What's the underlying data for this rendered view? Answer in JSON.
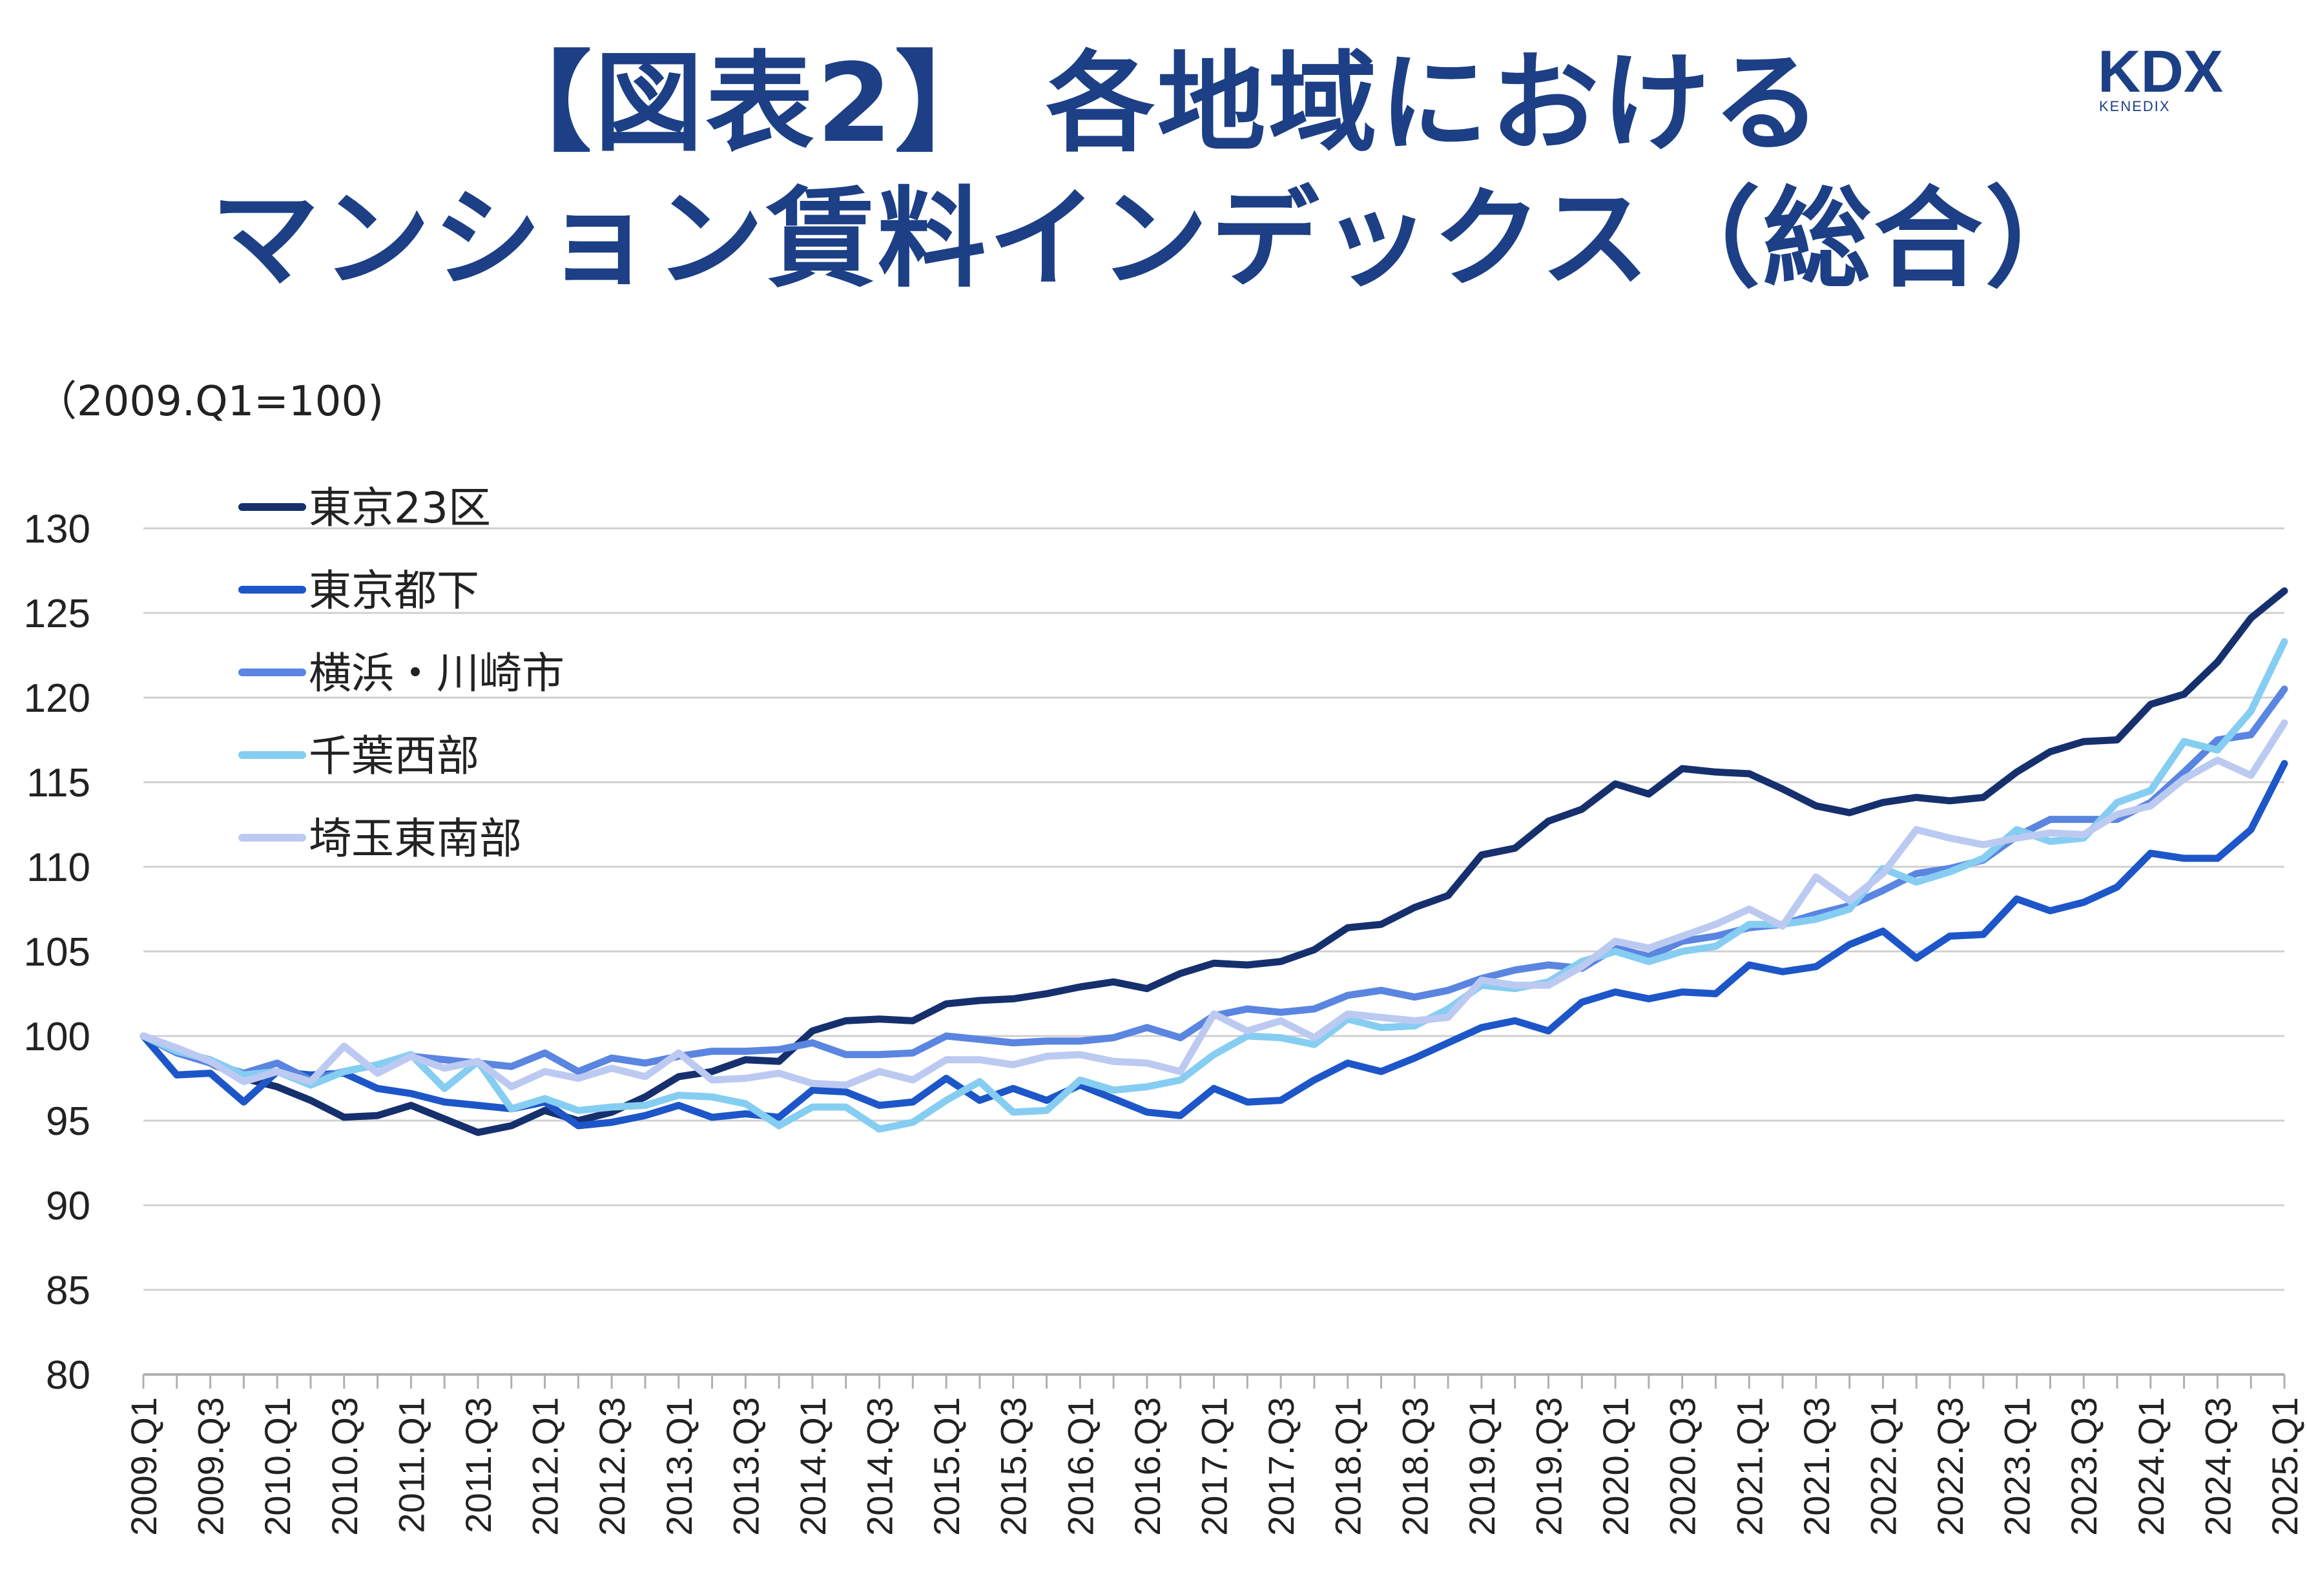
{
  "title_line1": "【図表2】 各地域における",
  "title_line2": "マンション賃料インデックス（総合）",
  "logo": {
    "text": "KDX",
    "sub": "KENEDIX"
  },
  "unit_note": "（2009.Q1=100)",
  "colors": {
    "title": "#1c3f86",
    "grid": "#d0d0d0",
    "axis": "#b0b0b0",
    "text": "#222222"
  },
  "chart_data": {
    "type": "line",
    "ylim": [
      80,
      130
    ],
    "yticks": [
      80,
      85,
      90,
      95,
      100,
      105,
      110,
      115,
      120,
      125,
      130
    ],
    "grid": true,
    "legend_position": "top-left",
    "xtick_labels": [
      "2009.Q1",
      "2009.Q3",
      "2010.Q1",
      "2010.Q3",
      "2011.Q1",
      "2011.Q3",
      "2012.Q1",
      "2012.Q3",
      "2013.Q1",
      "2013.Q3",
      "2014.Q1",
      "2014.Q3",
      "2015.Q1",
      "2015.Q3",
      "2016.Q1",
      "2016.Q3",
      "2017.Q1",
      "2017.Q3",
      "2018.Q1",
      "2018.Q3",
      "2019.Q1",
      "2019.Q3",
      "2020.Q1",
      "2020.Q3",
      "2021.Q1",
      "2021.Q3",
      "2022.Q1",
      "2022.Q3",
      "2023.Q1",
      "2023.Q3",
      "2024.Q1",
      "2024.Q3",
      "2025.Q1"
    ],
    "x": [
      "2009.Q1",
      "2009.Q2",
      "2009.Q3",
      "2009.Q4",
      "2010.Q1",
      "2010.Q2",
      "2010.Q3",
      "2010.Q4",
      "2011.Q1",
      "2011.Q2",
      "2011.Q3",
      "2011.Q4",
      "2012.Q1",
      "2012.Q2",
      "2012.Q3",
      "2012.Q4",
      "2013.Q1",
      "2013.Q2",
      "2013.Q3",
      "2013.Q4",
      "2014.Q1",
      "2014.Q2",
      "2014.Q3",
      "2014.Q4",
      "2015.Q1",
      "2015.Q2",
      "2015.Q3",
      "2015.Q4",
      "2016.Q1",
      "2016.Q2",
      "2016.Q3",
      "2016.Q4",
      "2017.Q1",
      "2017.Q2",
      "2017.Q3",
      "2017.Q4",
      "2018.Q1",
      "2018.Q2",
      "2018.Q3",
      "2018.Q4",
      "2019.Q1",
      "2019.Q2",
      "2019.Q3",
      "2019.Q4",
      "2020.Q1",
      "2020.Q2",
      "2020.Q3",
      "2020.Q4",
      "2021.Q1",
      "2021.Q2",
      "2021.Q3",
      "2021.Q4",
      "2022.Q1",
      "2022.Q2",
      "2022.Q3",
      "2022.Q4",
      "2023.Q1",
      "2023.Q2",
      "2023.Q3",
      "2023.Q4",
      "2024.Q1",
      "2024.Q2",
      "2024.Q3",
      "2024.Q4",
      "2025.Q1"
    ],
    "series": [
      {
        "name": "東京23区",
        "color": "#16306e",
        "values": [
          100,
          99.2,
          98.4,
          97.5,
          97.0,
          96.2,
          95.2,
          95.3,
          95.9,
          95.1,
          94.3,
          94.7,
          95.6,
          95.0,
          95.5,
          96.4,
          97.6,
          97.9,
          98.6,
          98.5,
          100.3,
          100.9,
          101.0,
          100.9,
          101.9,
          102.1,
          102.2,
          102.5,
          102.9,
          103.2,
          102.8,
          103.7,
          104.3,
          104.2,
          104.4,
          105.1,
          106.4,
          106.6,
          107.6,
          108.3,
          110.7,
          111.1,
          112.7,
          113.4,
          114.9,
          114.3,
          115.8,
          115.6,
          115.5,
          114.6,
          113.6,
          113.2,
          113.8,
          114.1,
          113.9,
          114.1,
          115.6,
          116.8,
          117.4,
          117.5,
          119.6,
          120.2,
          122.1,
          124.7,
          126.3
        ]
      },
      {
        "name": "東京都下",
        "color": "#1d56c8",
        "values": [
          100,
          97.7,
          97.8,
          96.1,
          97.9,
          97.7,
          97.8,
          96.9,
          96.6,
          96.1,
          95.9,
          95.7,
          96.1,
          94.7,
          94.9,
          95.3,
          95.9,
          95.2,
          95.4,
          95.2,
          96.8,
          96.7,
          95.9,
          96.1,
          97.5,
          96.2,
          96.9,
          96.2,
          97.1,
          96.3,
          95.5,
          95.3,
          96.9,
          96.1,
          96.2,
          97.4,
          98.4,
          97.9,
          98.7,
          99.6,
          100.5,
          100.9,
          100.3,
          102.0,
          102.6,
          102.2,
          102.6,
          102.5,
          104.2,
          103.8,
          104.1,
          105.4,
          106.2,
          104.6,
          105.9,
          106.0,
          108.1,
          107.4,
          107.9,
          108.8,
          110.8,
          110.5,
          110.5,
          112.2,
          116.1
        ]
      },
      {
        "name": "横浜・川崎市",
        "color": "#5a85e0",
        "values": [
          100,
          99.0,
          98.4,
          97.8,
          98.4,
          97.4,
          97.9,
          98.3,
          98.8,
          98.6,
          98.4,
          98.2,
          99.0,
          97.9,
          98.7,
          98.4,
          98.8,
          99.1,
          99.1,
          99.2,
          99.6,
          98.9,
          98.9,
          99.0,
          100.0,
          99.8,
          99.6,
          99.7,
          99.7,
          99.9,
          100.5,
          99.9,
          101.2,
          101.6,
          101.4,
          101.6,
          102.4,
          102.7,
          102.3,
          102.7,
          103.4,
          103.9,
          104.2,
          104.0,
          105.2,
          104.7,
          105.6,
          105.9,
          106.4,
          106.6,
          107.2,
          107.7,
          108.6,
          109.6,
          109.9,
          110.4,
          111.8,
          112.8,
          112.8,
          112.8,
          113.8,
          115.6,
          117.5,
          117.8,
          120.5
        ]
      },
      {
        "name": "千葉西部",
        "color": "#86cdf2",
        "values": [
          100,
          99.1,
          98.6,
          97.7,
          97.9,
          97.1,
          97.9,
          98.3,
          98.9,
          96.9,
          98.5,
          95.7,
          96.3,
          95.6,
          95.8,
          95.9,
          96.5,
          96.4,
          96.0,
          94.7,
          95.8,
          95.8,
          94.5,
          94.9,
          96.2,
          97.3,
          95.5,
          95.6,
          97.4,
          96.8,
          97.0,
          97.4,
          98.9,
          100.0,
          99.9,
          99.5,
          101.0,
          100.5,
          100.6,
          101.6,
          103.0,
          102.8,
          103.2,
          104.4,
          105.0,
          104.4,
          105.0,
          105.3,
          106.6,
          106.6,
          106.9,
          107.5,
          109.9,
          109.1,
          109.7,
          110.5,
          112.2,
          111.5,
          111.7,
          113.8,
          114.5,
          117.4,
          116.9,
          119.2,
          123.3
        ]
      },
      {
        "name": "埼玉東南部",
        "color": "#bccaf2",
        "values": [
          100,
          99.3,
          98.5,
          97.3,
          97.9,
          97.3,
          99.4,
          97.8,
          98.8,
          98.1,
          98.5,
          97.0,
          97.9,
          97.5,
          98.1,
          97.6,
          99.0,
          97.4,
          97.5,
          97.8,
          97.2,
          97.1,
          97.9,
          97.4,
          98.6,
          98.6,
          98.3,
          98.8,
          98.9,
          98.5,
          98.4,
          97.9,
          101.3,
          100.3,
          100.9,
          99.9,
          101.3,
          101.1,
          100.9,
          101.1,
          103.3,
          103.0,
          103.0,
          104.1,
          105.6,
          105.2,
          105.9,
          106.6,
          107.5,
          106.5,
          109.4,
          108.0,
          109.6,
          112.2,
          111.7,
          111.3,
          111.7,
          112.0,
          111.9,
          113.1,
          113.6,
          115.2,
          116.3,
          115.4,
          118.5
        ]
      }
    ]
  }
}
